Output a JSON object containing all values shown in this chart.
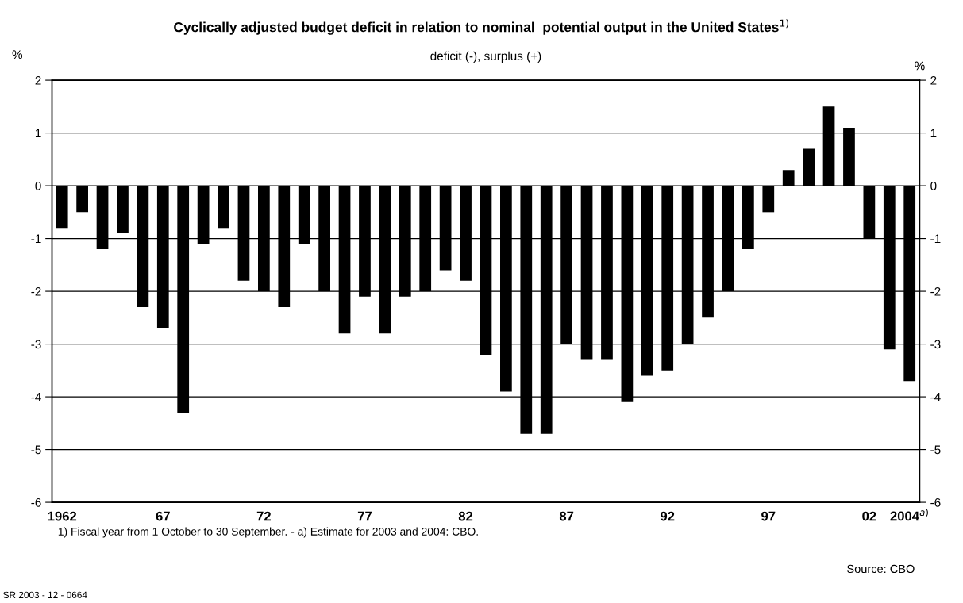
{
  "chart_data": {
    "type": "bar",
    "title": "Cyclically adjusted budget deficit in relation to nominal  potential output in the United States$^{1)}$",
    "subtitle": "deficit (-), surplus (+)",
    "ylabel": "%",
    "y2label": "%",
    "categories": [
      "1962",
      null,
      null,
      null,
      null,
      "67",
      null,
      null,
      null,
      null,
      "72",
      null,
      null,
      null,
      null,
      "77",
      null,
      null,
      null,
      null,
      "82",
      null,
      null,
      null,
      null,
      "87",
      null,
      null,
      null,
      null,
      "92",
      null,
      null,
      null,
      null,
      "97",
      null,
      null,
      null,
      null,
      "02",
      null,
      "2004$^{a)}$"
    ],
    "values": [
      -0.8,
      -0.5,
      -1.2,
      -0.9,
      -2.3,
      -2.7,
      -4.3,
      -1.1,
      -0.8,
      -1.8,
      -2.0,
      -2.3,
      -1.1,
      -2.0,
      -2.8,
      -2.1,
      -2.8,
      -2.1,
      -2.0,
      -1.6,
      -1.8,
      -3.2,
      -3.9,
      -4.7,
      -4.7,
      -3.0,
      -3.3,
      -3.3,
      -4.1,
      -3.6,
      -3.5,
      -3.0,
      -2.5,
      -2.0,
      -1.2,
      -0.5,
      0.3,
      0.7,
      1.5,
      1.1,
      -1.0,
      -3.1,
      -3.7
    ],
    "color": "#000000",
    "ylim": [
      -6,
      2
    ],
    "yticks": [
      -6,
      -5,
      -4,
      -3,
      -2,
      -1,
      0,
      1,
      2
    ],
    "y2lim": [
      -6,
      2
    ],
    "y2ticks": [
      -6,
      -5,
      -4,
      -3,
      -2,
      -1,
      0,
      1,
      2
    ],
    "grid": "y",
    "legend": false,
    "annotations": [
      "1) Fiscal year from 1 October to 30 September. - a) Estimate for 2003 and 2004: CBO.",
      "Source: CBO",
      "SR 2003 - 12 - 0664"
    ]
  }
}
